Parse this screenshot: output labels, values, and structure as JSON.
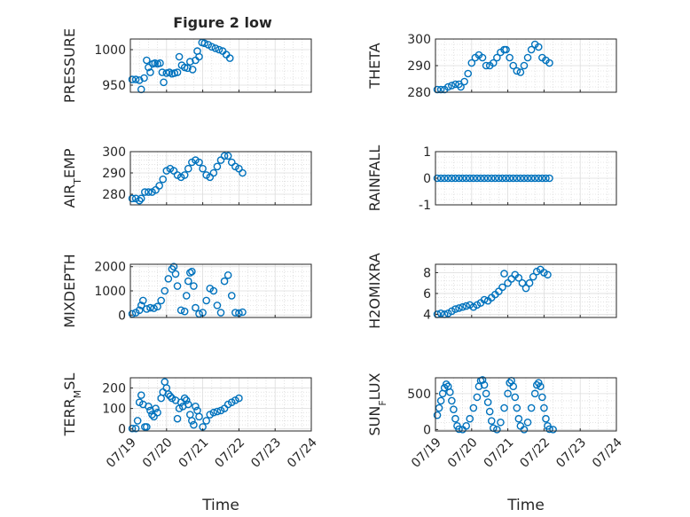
{
  "figure": {
    "title": "Figure 2 low",
    "marker_color": "#0072BD",
    "axis_color": "#262626",
    "grid_color": "#dcdcdc"
  },
  "chart_data": [
    {
      "type": "scatter",
      "ylabel": "PRESSURE",
      "xlabel": "",
      "title": "Figure 2 low",
      "ylim": [
        940,
        1015
      ],
      "yticks": [
        950,
        1000
      ],
      "xlim": [
        0,
        5
      ],
      "xticks": [
        "07/19",
        "07/20",
        "07/21",
        "07/22",
        "07/23",
        "07/24"
      ],
      "show_xtick_labels": false,
      "grid": true,
      "points": [
        [
          0.05,
          958
        ],
        [
          0.15,
          958
        ],
        [
          0.25,
          957
        ],
        [
          0.3,
          944
        ],
        [
          0.38,
          960
        ],
        [
          0.45,
          985
        ],
        [
          0.5,
          975
        ],
        [
          0.55,
          968
        ],
        [
          0.62,
          980
        ],
        [
          0.68,
          981
        ],
        [
          0.75,
          980
        ],
        [
          0.82,
          981
        ],
        [
          0.88,
          968
        ],
        [
          0.92,
          954
        ],
        [
          1.0,
          967
        ],
        [
          1.08,
          968
        ],
        [
          1.15,
          966
        ],
        [
          1.22,
          967
        ],
        [
          1.3,
          968
        ],
        [
          1.35,
          990
        ],
        [
          1.42,
          978
        ],
        [
          1.5,
          975
        ],
        [
          1.58,
          974
        ],
        [
          1.65,
          983
        ],
        [
          1.72,
          972
        ],
        [
          1.8,
          985
        ],
        [
          1.85,
          998
        ],
        [
          1.9,
          990
        ],
        [
          1.98,
          1010
        ],
        [
          2.05,
          1009
        ],
        [
          2.15,
          1007
        ],
        [
          2.25,
          1004
        ],
        [
          2.35,
          1002
        ],
        [
          2.45,
          1000
        ],
        [
          2.55,
          998
        ],
        [
          2.65,
          993
        ],
        [
          2.75,
          988
        ]
      ]
    },
    {
      "type": "scatter",
      "ylabel": "THETA",
      "xlabel": "",
      "title": "",
      "ylim": [
        280,
        300
      ],
      "yticks": [
        280,
        290,
        300
      ],
      "xlim": [
        0,
        5
      ],
      "xticks": [
        "07/19",
        "07/20",
        "07/21",
        "07/22",
        "07/23",
        "07/24"
      ],
      "show_xtick_labels": false,
      "grid": true,
      "points": [
        [
          0.05,
          281
        ],
        [
          0.15,
          281
        ],
        [
          0.25,
          281
        ],
        [
          0.35,
          282
        ],
        [
          0.45,
          282.5
        ],
        [
          0.55,
          283
        ],
        [
          0.65,
          283
        ],
        [
          0.7,
          282
        ],
        [
          0.8,
          284
        ],
        [
          0.9,
          287
        ],
        [
          1.0,
          291
        ],
        [
          1.1,
          293
        ],
        [
          1.2,
          294
        ],
        [
          1.3,
          293
        ],
        [
          1.4,
          290
        ],
        [
          1.5,
          290
        ],
        [
          1.6,
          291
        ],
        [
          1.7,
          293
        ],
        [
          1.8,
          295
        ],
        [
          1.9,
          296
        ],
        [
          1.95,
          296
        ],
        [
          2.05,
          293
        ],
        [
          2.15,
          290
        ],
        [
          2.25,
          288
        ],
        [
          2.35,
          287.5
        ],
        [
          2.45,
          290
        ],
        [
          2.55,
          293
        ],
        [
          2.65,
          296
        ],
        [
          2.75,
          298
        ],
        [
          2.85,
          297
        ],
        [
          2.95,
          293
        ],
        [
          3.05,
          292
        ],
        [
          3.15,
          291
        ]
      ]
    },
    {
      "type": "scatter",
      "ylabel": "AIR_TEMP",
      "xlabel": "",
      "title": "",
      "ylim": [
        275,
        300
      ],
      "yticks": [
        280,
        290,
        300
      ],
      "xlim": [
        0,
        5
      ],
      "xticks": [
        "07/19",
        "07/20",
        "07/21",
        "07/22",
        "07/23",
        "07/24"
      ],
      "show_xtick_labels": false,
      "grid": true,
      "points": [
        [
          0.05,
          278
        ],
        [
          0.15,
          278
        ],
        [
          0.25,
          277
        ],
        [
          0.3,
          278
        ],
        [
          0.4,
          281
        ],
        [
          0.5,
          281
        ],
        [
          0.6,
          281
        ],
        [
          0.7,
          282
        ],
        [
          0.8,
          284
        ],
        [
          0.9,
          287
        ],
        [
          1.0,
          291
        ],
        [
          1.1,
          292
        ],
        [
          1.2,
          291
        ],
        [
          1.3,
          289
        ],
        [
          1.4,
          288
        ],
        [
          1.5,
          289
        ],
        [
          1.6,
          292
        ],
        [
          1.7,
          295
        ],
        [
          1.8,
          296
        ],
        [
          1.9,
          295
        ],
        [
          2.0,
          292
        ],
        [
          2.1,
          289
        ],
        [
          2.2,
          288
        ],
        [
          2.3,
          290
        ],
        [
          2.4,
          293
        ],
        [
          2.5,
          296
        ],
        [
          2.6,
          298
        ],
        [
          2.7,
          298
        ],
        [
          2.8,
          295
        ],
        [
          2.9,
          293
        ],
        [
          3.0,
          292
        ],
        [
          3.1,
          290
        ]
      ]
    },
    {
      "type": "scatter",
      "ylabel": "RAINFALL",
      "xlabel": "",
      "title": "",
      "ylim": [
        -1,
        1
      ],
      "yticks": [
        -1,
        0,
        1
      ],
      "xlim": [
        0,
        5
      ],
      "xticks": [
        "07/19",
        "07/20",
        "07/21",
        "07/22",
        "07/23",
        "07/24"
      ],
      "show_xtick_labels": false,
      "grid": true,
      "points": [
        [
          0.05,
          0
        ],
        [
          0.15,
          0
        ],
        [
          0.25,
          0
        ],
        [
          0.35,
          0
        ],
        [
          0.45,
          0
        ],
        [
          0.55,
          0
        ],
        [
          0.65,
          0
        ],
        [
          0.75,
          0
        ],
        [
          0.85,
          0
        ],
        [
          0.95,
          0
        ],
        [
          1.05,
          0
        ],
        [
          1.15,
          0
        ],
        [
          1.25,
          0
        ],
        [
          1.35,
          0
        ],
        [
          1.45,
          0
        ],
        [
          1.55,
          0
        ],
        [
          1.65,
          0
        ],
        [
          1.75,
          0
        ],
        [
          1.85,
          0
        ],
        [
          1.95,
          0
        ],
        [
          2.05,
          0
        ],
        [
          2.15,
          0
        ],
        [
          2.25,
          0
        ],
        [
          2.35,
          0
        ],
        [
          2.45,
          0
        ],
        [
          2.55,
          0
        ],
        [
          2.65,
          0
        ],
        [
          2.75,
          0
        ],
        [
          2.85,
          0
        ],
        [
          2.95,
          0
        ],
        [
          3.05,
          0
        ],
        [
          3.15,
          0
        ]
      ]
    },
    {
      "type": "scatter",
      "ylabel": "MIXDEPTH",
      "xlabel": "",
      "title": "",
      "ylim": [
        -100,
        2100
      ],
      "yticks": [
        0,
        1000,
        2000
      ],
      "xlim": [
        0,
        5
      ],
      "xticks": [
        "07/19",
        "07/20",
        "07/21",
        "07/22",
        "07/23",
        "07/24"
      ],
      "show_xtick_labels": false,
      "grid": true,
      "points": [
        [
          0.05,
          50
        ],
        [
          0.15,
          100
        ],
        [
          0.25,
          200
        ],
        [
          0.3,
          400
        ],
        [
          0.35,
          600
        ],
        [
          0.45,
          250
        ],
        [
          0.55,
          300
        ],
        [
          0.65,
          280
        ],
        [
          0.75,
          350
        ],
        [
          0.85,
          600
        ],
        [
          0.95,
          1000
        ],
        [
          1.05,
          1500
        ],
        [
          1.15,
          1900
        ],
        [
          1.2,
          2000
        ],
        [
          1.25,
          1700
        ],
        [
          1.3,
          1200
        ],
        [
          1.4,
          200
        ],
        [
          1.5,
          150
        ],
        [
          1.55,
          800
        ],
        [
          1.6,
          1400
        ],
        [
          1.65,
          1750
        ],
        [
          1.7,
          1800
        ],
        [
          1.75,
          1200
        ],
        [
          1.8,
          300
        ],
        [
          1.9,
          50
        ],
        [
          2.0,
          100
        ],
        [
          2.1,
          600
        ],
        [
          2.2,
          1100
        ],
        [
          2.3,
          1000
        ],
        [
          2.4,
          400
        ],
        [
          2.5,
          100
        ],
        [
          2.6,
          1400
        ],
        [
          2.7,
          1650
        ],
        [
          2.8,
          800
        ],
        [
          2.9,
          100
        ],
        [
          3.0,
          80
        ],
        [
          3.1,
          120
        ]
      ]
    },
    {
      "type": "scatter",
      "ylabel": "H2OMIXRA",
      "xlabel": "",
      "title": "",
      "ylim": [
        3.7,
        8.8
      ],
      "yticks": [
        4,
        6,
        8
      ],
      "xlim": [
        0,
        5
      ],
      "xticks": [
        "07/19",
        "07/20",
        "07/21",
        "07/22",
        "07/23",
        "07/24"
      ],
      "show_xtick_labels": false,
      "grid": true,
      "points": [
        [
          0.05,
          4.0
        ],
        [
          0.15,
          4.1
        ],
        [
          0.25,
          4.0
        ],
        [
          0.35,
          4.1
        ],
        [
          0.45,
          4.3
        ],
        [
          0.55,
          4.5
        ],
        [
          0.65,
          4.6
        ],
        [
          0.75,
          4.7
        ],
        [
          0.85,
          4.8
        ],
        [
          0.95,
          4.9
        ],
        [
          1.05,
          4.7
        ],
        [
          1.15,
          4.9
        ],
        [
          1.25,
          5.1
        ],
        [
          1.35,
          5.4
        ],
        [
          1.45,
          5.3
        ],
        [
          1.55,
          5.6
        ],
        [
          1.65,
          5.9
        ],
        [
          1.75,
          6.2
        ],
        [
          1.85,
          6.6
        ],
        [
          1.9,
          7.9
        ],
        [
          2.0,
          7.0
        ],
        [
          2.1,
          7.4
        ],
        [
          2.2,
          7.8
        ],
        [
          2.3,
          7.5
        ],
        [
          2.4,
          7.0
        ],
        [
          2.5,
          6.5
        ],
        [
          2.6,
          7.0
        ],
        [
          2.7,
          7.6
        ],
        [
          2.8,
          8.1
        ],
        [
          2.9,
          8.3
        ],
        [
          3.0,
          8.0
        ],
        [
          3.1,
          7.8
        ]
      ]
    },
    {
      "type": "scatter",
      "ylabel": "TERR_MSL",
      "xlabel": "Time",
      "title": "",
      "ylim": [
        -10,
        250
      ],
      "yticks": [
        0,
        100,
        200
      ],
      "xlim": [
        0,
        5
      ],
      "xticks": [
        "07/19",
        "07/20",
        "07/21",
        "07/22",
        "07/23",
        "07/24"
      ],
      "show_xtick_labels": true,
      "grid": true,
      "points": [
        [
          0.05,
          2
        ],
        [
          0.15,
          2
        ],
        [
          0.2,
          40
        ],
        [
          0.25,
          130
        ],
        [
          0.3,
          165
        ],
        [
          0.35,
          120
        ],
        [
          0.4,
          10
        ],
        [
          0.45,
          10
        ],
        [
          0.5,
          110
        ],
        [
          0.55,
          90
        ],
        [
          0.6,
          70
        ],
        [
          0.65,
          60
        ],
        [
          0.7,
          100
        ],
        [
          0.75,
          80
        ],
        [
          0.85,
          150
        ],
        [
          0.9,
          180
        ],
        [
          0.95,
          230
        ],
        [
          1.0,
          200
        ],
        [
          1.05,
          170
        ],
        [
          1.1,
          160
        ],
        [
          1.15,
          150
        ],
        [
          1.25,
          140
        ],
        [
          1.3,
          50
        ],
        [
          1.35,
          100
        ],
        [
          1.4,
          130
        ],
        [
          1.45,
          110
        ],
        [
          1.5,
          150
        ],
        [
          1.55,
          140
        ],
        [
          1.6,
          120
        ],
        [
          1.65,
          70
        ],
        [
          1.7,
          40
        ],
        [
          1.75,
          20
        ],
        [
          1.8,
          110
        ],
        [
          1.85,
          90
        ],
        [
          1.9,
          60
        ],
        [
          2.0,
          10
        ],
        [
          2.1,
          40
        ],
        [
          2.2,
          70
        ],
        [
          2.3,
          80
        ],
        [
          2.4,
          85
        ],
        [
          2.5,
          90
        ],
        [
          2.6,
          100
        ],
        [
          2.7,
          120
        ],
        [
          2.8,
          130
        ],
        [
          2.9,
          140
        ],
        [
          3.0,
          150
        ]
      ]
    },
    {
      "type": "scatter",
      "ylabel": "SUN_FLUX",
      "xlabel": "Time",
      "title": "",
      "ylim": [
        -20,
        720
      ],
      "yticks": [
        0,
        500
      ],
      "xlim": [
        0,
        5
      ],
      "xticks": [
        "07/19",
        "07/20",
        "07/21",
        "07/22",
        "07/23",
        "07/24"
      ],
      "show_xtick_labels": true,
      "grid": true,
      "points": [
        [
          0.05,
          200
        ],
        [
          0.1,
          300
        ],
        [
          0.15,
          400
        ],
        [
          0.2,
          500
        ],
        [
          0.25,
          580
        ],
        [
          0.3,
          630
        ],
        [
          0.35,
          600
        ],
        [
          0.4,
          520
        ],
        [
          0.45,
          400
        ],
        [
          0.5,
          280
        ],
        [
          0.55,
          150
        ],
        [
          0.6,
          50
        ],
        [
          0.65,
          5
        ],
        [
          0.75,
          0
        ],
        [
          0.85,
          50
        ],
        [
          0.95,
          150
        ],
        [
          1.05,
          300
        ],
        [
          1.15,
          450
        ],
        [
          1.2,
          600
        ],
        [
          1.25,
          680
        ],
        [
          1.3,
          690
        ],
        [
          1.35,
          620
        ],
        [
          1.4,
          500
        ],
        [
          1.45,
          380
        ],
        [
          1.5,
          250
        ],
        [
          1.55,
          120
        ],
        [
          1.6,
          20
        ],
        [
          1.7,
          0
        ],
        [
          1.8,
          100
        ],
        [
          1.9,
          300
        ],
        [
          2.0,
          500
        ],
        [
          2.05,
          650
        ],
        [
          2.1,
          680
        ],
        [
          2.15,
          600
        ],
        [
          2.2,
          450
        ],
        [
          2.25,
          300
        ],
        [
          2.3,
          150
        ],
        [
          2.35,
          50
        ],
        [
          2.45,
          0
        ],
        [
          2.55,
          100
        ],
        [
          2.65,
          300
        ],
        [
          2.75,
          500
        ],
        [
          2.8,
          620
        ],
        [
          2.85,
          650
        ],
        [
          2.9,
          600
        ],
        [
          2.95,
          450
        ],
        [
          3.0,
          300
        ],
        [
          3.05,
          150
        ],
        [
          3.1,
          50
        ],
        [
          3.15,
          5
        ],
        [
          3.25,
          0
        ]
      ]
    }
  ]
}
